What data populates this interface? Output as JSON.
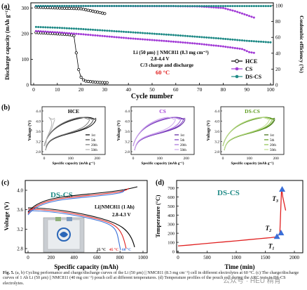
{
  "panel_a": {
    "label": "(a)",
    "ylabel_left": "Discharge capacity (mAh g⁻¹)",
    "ylabel_right": "Coulombic efficiency (%)",
    "xlabel": "Cycle number",
    "cell": "Li (50 μm) || NMC811 (8.3 mg cm⁻²)",
    "voltage": "2.8-4.4 V",
    "rate": "C/3 charge and discharge",
    "temp": "60 °C",
    "xticks": [
      "0",
      "10",
      "20",
      "30",
      "40",
      "50",
      "60",
      "70",
      "80",
      "90",
      "100"
    ],
    "yticks_left": [
      "0",
      "100",
      "200",
      "300"
    ],
    "yticks_right": [
      "0",
      "20",
      "40",
      "60",
      "80",
      "100"
    ],
    "legend": [
      "HCE",
      "CS",
      "DS-CS"
    ]
  },
  "panel_b": {
    "label": "(b)",
    "titles": [
      "HCE",
      "CS",
      "DS-CS"
    ],
    "ylabel": "Voltage (V)",
    "xlabel": "Specific capacity (mAh g⁻¹)",
    "yticks": [
      "2.8",
      "3.2",
      "3.6",
      "4.0",
      "4.4"
    ],
    "xticks": [
      "0",
      "100",
      "200"
    ],
    "cycle_labels": [
      "1st",
      "5th",
      "20th",
      "50th"
    ]
  },
  "panel_c": {
    "label": "(c)",
    "title": "DS-CS",
    "ylabel": "Voltage (V)",
    "xlabel": "Specific capacity (mAh)",
    "cell": "Li||NMC811 (1 Ah)",
    "voltage": "2.8-4.3 V",
    "temps": [
      "25 °C",
      "45 °C",
      "60 °C"
    ],
    "yticks": [
      "2.8",
      "3.2",
      "3.6",
      "4.0"
    ],
    "xticks": [
      "0",
      "200",
      "400",
      "600",
      "800",
      "1000"
    ]
  },
  "panel_d": {
    "label": "(d)",
    "title": "DS-CS",
    "ylabel": "Temperature (°C)",
    "xlabel": "Time (min)",
    "yticks": [
      "0",
      "100",
      "200",
      "300",
      "400",
      "500",
      "600",
      "700"
    ],
    "xticks": [
      "0",
      "500",
      "1000",
      "1500",
      "2000"
    ],
    "markers": [
      "T1",
      "T2",
      "T3"
    ]
  },
  "caption": {
    "lead": "Fig. 5.",
    "text": "(a, b) Cycling performance and charge/discharge curves of the Li (50 μm) || NMC811 (8.3 mg cm⁻²) cell in different electrolytes at 60 °C. (c) The charge/discharge curves of 1 Ah Li (50 μm) || NMC811 (40 mg cm⁻²) pouch cell at different temperatures. (d) Temperature profiles of the pouch cell during the ARC tests in DS-CS electrolytes."
  },
  "watermark": "公众号 · HEU 精育",
  "colors": {
    "hce": "#000000",
    "cs": "#a23bd6",
    "dscs": "#1f8a86",
    "green": "#5a9a1a",
    "red": "#e02020",
    "blue": "#3a6fd8"
  },
  "chart_data": [
    {
      "type": "line",
      "title": "",
      "xlabel": "Cycle number",
      "ylabel": "Discharge capacity (mAh g⁻¹)",
      "xlim": [
        0,
        100
      ],
      "ylim": [
        0,
        320
      ],
      "series": [
        {
          "name": "HCE",
          "x": [
            1,
            5,
            10,
            15,
            17,
            18,
            19,
            20,
            21,
            22,
            25,
            28,
            31
          ],
          "y": [
            204,
            202,
            199,
            196,
            192,
            125,
            60,
            30,
            20,
            15,
            12,
            10,
            9
          ]
        },
        {
          "name": "CS",
          "x": [
            1,
            10,
            20,
            30,
            40,
            50,
            60,
            70,
            80,
            88,
            90,
            91,
            93
          ],
          "y": [
            210,
            205,
            198,
            190,
            182,
            175,
            168,
            160,
            150,
            140,
            132,
            128,
            125
          ]
        },
        {
          "name": "DS-CS",
          "x": [
            1,
            10,
            20,
            30,
            40,
            50,
            60,
            70,
            80,
            90,
            100
          ],
          "y": [
            226,
            223,
            218,
            212,
            206,
            200,
            194,
            187,
            180,
            172,
            166
          ]
        }
      ]
    },
    {
      "type": "line",
      "title": "",
      "xlabel": "Cycle number",
      "ylabel": "Coulombic efficiency (%)",
      "xlim": [
        0,
        100
      ],
      "ylim": [
        0,
        100
      ],
      "series": [
        {
          "name": "HCE",
          "x": [
            1,
            10,
            20,
            30
          ],
          "y": [
            98,
            97,
            96,
            90
          ]
        },
        {
          "name": "CS",
          "x": [
            1,
            20,
            40,
            60,
            70,
            80,
            85,
            90,
            93
          ],
          "y": [
            99.5,
            99.5,
            99.4,
            99.3,
            99,
            97,
            93,
            88,
            85
          ]
        },
        {
          "name": "DS-CS",
          "x": [
            1,
            20,
            40,
            60,
            80,
            100
          ],
          "y": [
            99.6,
            99.6,
            99.6,
            99.5,
            99.5,
            99.4
          ]
        }
      ]
    },
    {
      "type": "line",
      "title": "DS-CS",
      "xlabel": "Time (min)",
      "ylabel": "Temperature (°C)",
      "xlim": [
        0,
        2000
      ],
      "ylim": [
        0,
        750
      ],
      "series": [
        {
          "name": "",
          "x": [
            0,
            200,
            400,
            600,
            800,
            1000,
            1200,
            1400,
            1600,
            1700,
            1750,
            1780,
            1800,
            1850
          ],
          "y": [
            60,
            70,
            82,
            94,
            105,
            116,
            128,
            140,
            152,
            160,
            200,
            700,
            600,
            450
          ]
        }
      ]
    }
  ]
}
